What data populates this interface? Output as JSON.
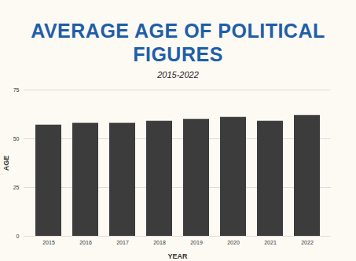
{
  "chart_data": {
    "type": "bar",
    "title": "AVERAGE AGE OF POLITICAL FIGURES",
    "subtitle": "2015-2022",
    "x_label": "YEAR",
    "y_label": "AGE",
    "categories": [
      "2015",
      "2016",
      "2017",
      "2018",
      "2019",
      "2020",
      "2021",
      "2022"
    ],
    "values": [
      57,
      58,
      58,
      59,
      60,
      61,
      59,
      62
    ],
    "color": "#3c3c3c",
    "ylim": [
      0,
      75
    ],
    "yticks": [
      0,
      25,
      50,
      75
    ],
    "grid": true
  }
}
